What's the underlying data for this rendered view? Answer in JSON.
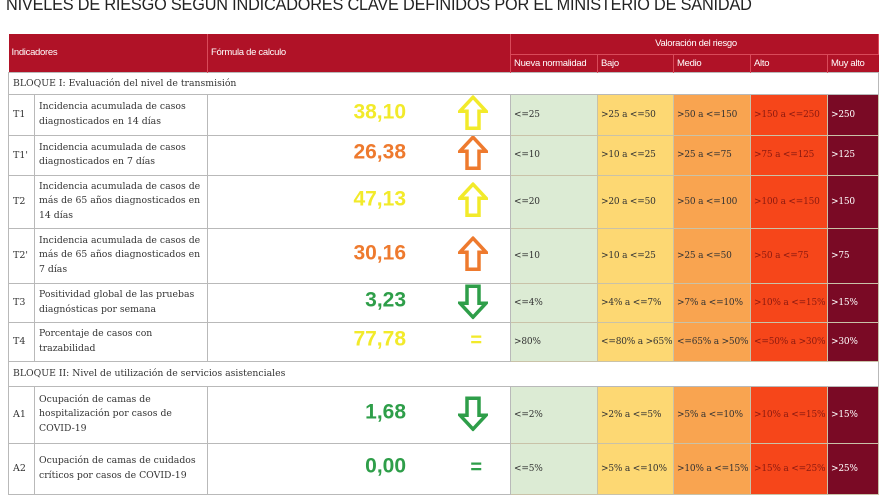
{
  "title": "NIVELES DE RIESGO SEGÚN INDICADORES CLAVE DEFINIDOS POR EL MINISTERIO DE SANIDAD",
  "header": {
    "indicators": "Indicadores",
    "formula": "Fórmula de calculo",
    "risk_group": "Valoración del riesgo",
    "levels": [
      "Nueva normalidad",
      "Bajo",
      "Medio",
      "Alto",
      "Muy alto"
    ]
  },
  "colors": {
    "header_bg": "#b01227",
    "nueva_normalidad": "#dcebd4",
    "bajo": "#fdd873",
    "medio": "#f9a450",
    "alto": "#f6461a",
    "muy_alto": "#7a0a25",
    "value_yellow": "#f2ea2a",
    "value_orange": "#ee7a2e",
    "value_green": "#2e9e49"
  },
  "blocks": [
    {
      "title": "BLOQUE I: Evaluación del nivel de transmisión",
      "rows": [
        {
          "code": "T1",
          "name": "Incidencia acumulada de casos diagnosticados en 14 días",
          "value": "38,10",
          "trend": "up",
          "color": "yellow",
          "ranges": [
            "<=25",
            ">25 a <=50",
            ">50 a <=150",
            ">150 a <=250",
            ">250"
          ]
        },
        {
          "code": "T1'",
          "name": "Incidencia acumulada de casos diagnosticados en 7 días",
          "value": "26,38",
          "trend": "up",
          "color": "orange",
          "ranges": [
            "<=10",
            ">10 a <=25",
            ">25 a <=75",
            ">75 a <=125",
            ">125"
          ]
        },
        {
          "code": "T2",
          "name": "Incidencia acumulada de casos de más de 65 años diagnosticados en 14 días",
          "value": "47,13",
          "trend": "up",
          "color": "yellow",
          "ranges": [
            "<=20",
            ">20 a <=50",
            ">50 a <=100",
            ">100 a <=150",
            ">150"
          ]
        },
        {
          "code": "T2'",
          "name": "Incidencia acumulada de casos de más de 65 años diagnosticados en 7 días",
          "value": "30,16",
          "trend": "up",
          "color": "orange",
          "ranges": [
            "<=10",
            ">10 a <=25",
            ">25 a <=50",
            ">50 a <=75",
            ">75"
          ]
        },
        {
          "code": "T3",
          "name": "Positividad global de las pruebas diagnósticas por semana",
          "value": "3,23",
          "trend": "down",
          "color": "green",
          "ranges": [
            "<=4%",
            ">4% a <=7%",
            ">7% a <=10%",
            ">10% a <=15%",
            ">15%"
          ]
        },
        {
          "code": "T4",
          "name": "Porcentaje de casos con trazabilidad",
          "value": "77,78",
          "trend": "equal",
          "color": "yellow",
          "ranges": [
            ">80%",
            "<=80% a >65%",
            "<=65% a >50%",
            "<=50% a >30%",
            ">30%"
          ]
        }
      ]
    },
    {
      "title": "BLOQUE II: Nivel de utilización de servicios asistenciales",
      "rows": [
        {
          "code": "A1",
          "name": "Ocupación de camas de hospitalización por casos de COVID-19",
          "value": "1,68",
          "trend": "down",
          "color": "green",
          "ranges": [
            "<=2%",
            ">2% a <=5%",
            ">5% a <=10%",
            ">10% a <=15%",
            ">15%"
          ]
        },
        {
          "code": "A2",
          "name": "Ocupación de camas de cuidados críticos por casos de COVID-19",
          "value": "0,00",
          "trend": "equal",
          "color": "green",
          "ranges": [
            "<=5%",
            ">5% a <=10%",
            ">10% a <=15%",
            ">15% a <=25%",
            ">25%"
          ]
        }
      ]
    }
  ],
  "icons": {
    "up": "arrow-up-outline-icon",
    "down": "arrow-down-outline-icon",
    "equal": "equals-sign-icon"
  }
}
